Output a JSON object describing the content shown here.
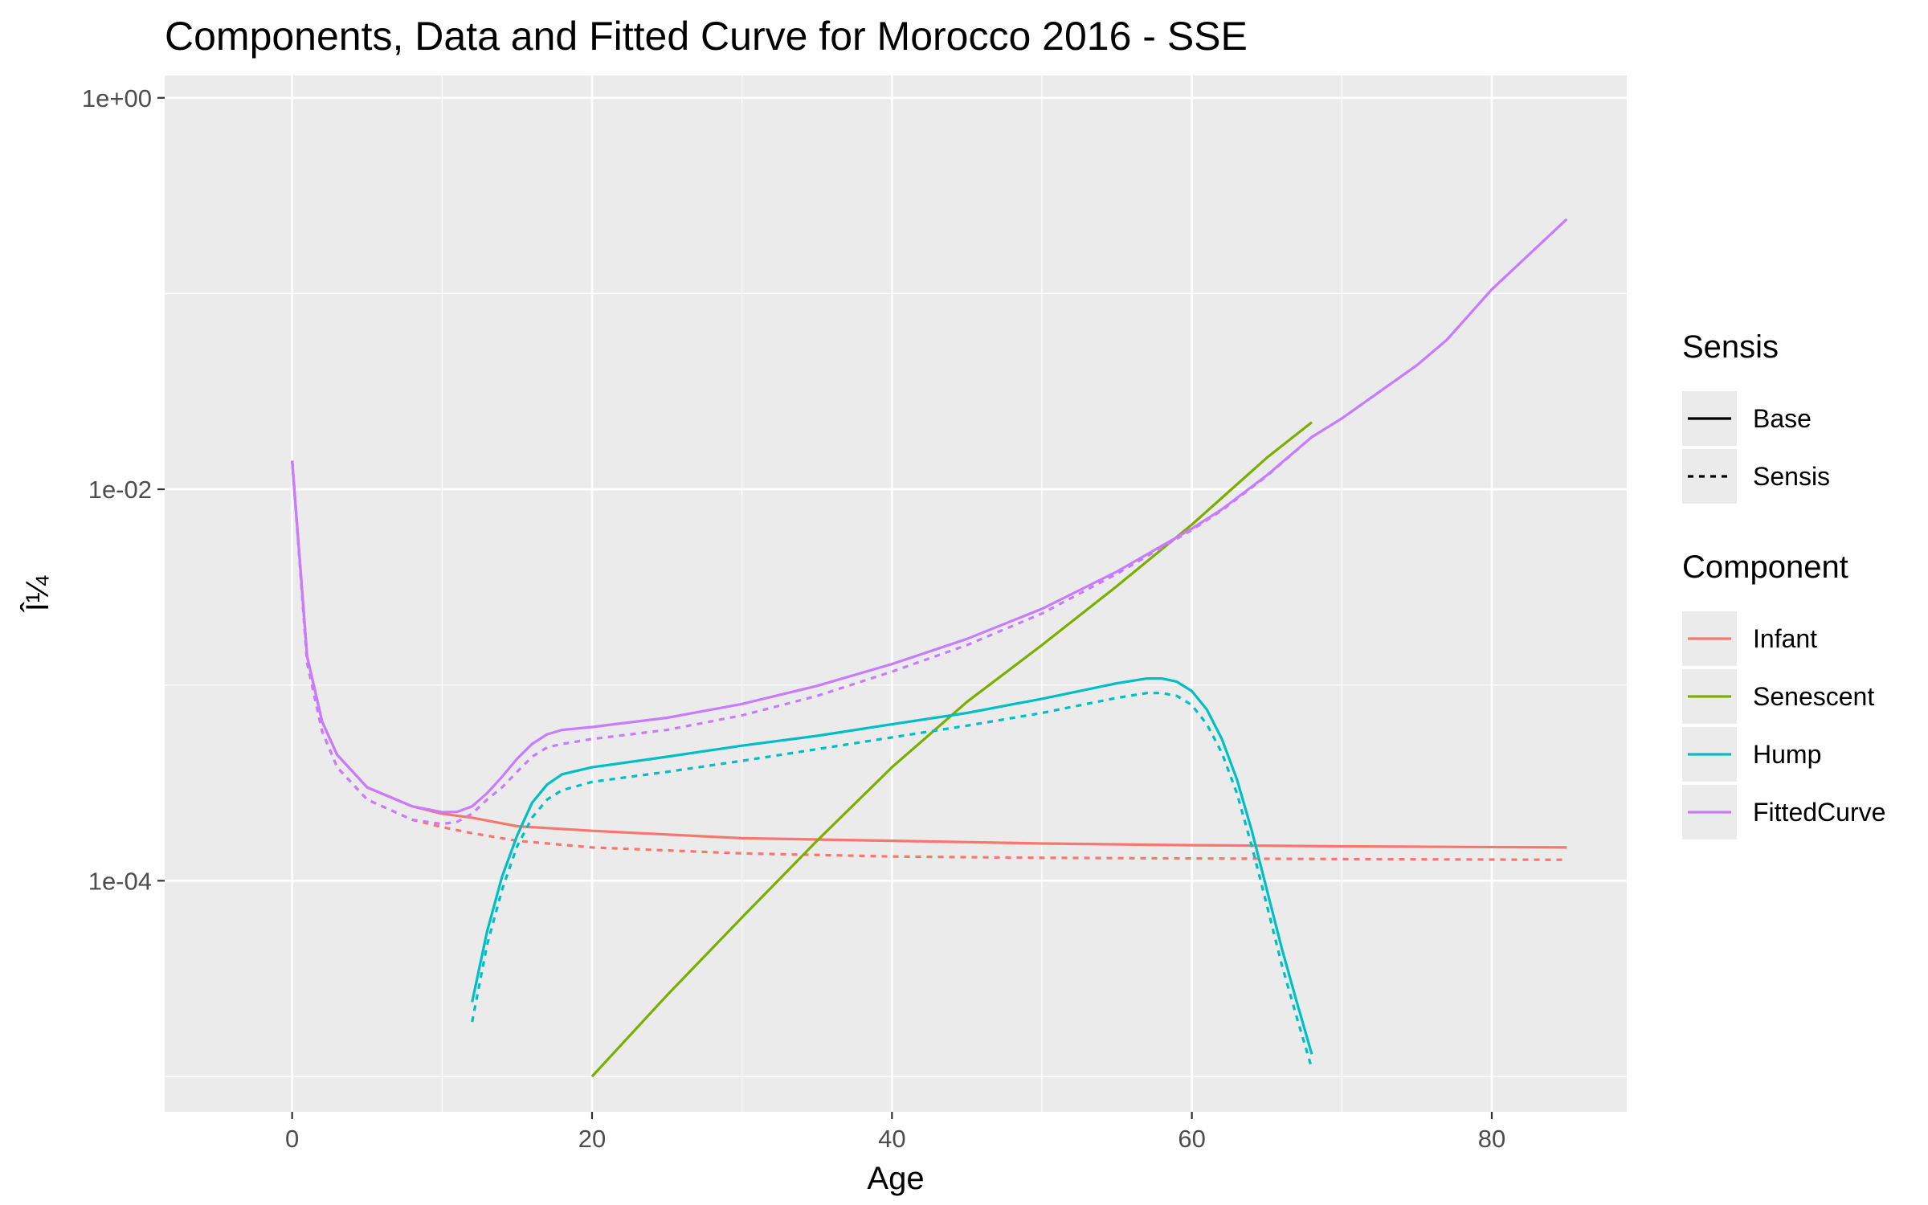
{
  "chart_data": {
    "type": "line",
    "title": "Components, Data and Fitted Curve for Morocco 2016 - SSE",
    "xlabel": "Age",
    "ylabel": "Î¼",
    "xlim": [
      -8.5,
      89
    ],
    "ylim": [
      6.6e-06,
      1.3
    ],
    "y_scale": "log",
    "x_ticks": [
      0,
      20,
      40,
      60,
      80
    ],
    "x_tick_labels": [
      "0",
      "20",
      "40",
      "60",
      "80"
    ],
    "y_ticks": [
      0.0001,
      0.01,
      1
    ],
    "y_tick_labels": [
      "1e-04",
      "1e-02",
      "1e+00"
    ],
    "grid": true,
    "legends": [
      {
        "title": "Sensis",
        "entries": [
          {
            "label": "Base",
            "linetype": "solid"
          },
          {
            "label": "Sensis",
            "linetype": "dashed"
          }
        ]
      },
      {
        "title": "Component",
        "entries": [
          {
            "label": "Infant",
            "color": "#F8766D"
          },
          {
            "label": "Senescent",
            "color": "#7CAE00"
          },
          {
            "label": "Hump",
            "color": "#00BFC4"
          },
          {
            "label": "FittedCurve",
            "color": "#C77CFF"
          }
        ]
      }
    ],
    "legend_position": "right",
    "series": [
      {
        "component": "Infant",
        "sensis": "Base",
        "color": "#F8766D",
        "linetype": "solid",
        "x": [
          0,
          1,
          2,
          3,
          5,
          8,
          10,
          12,
          15,
          20,
          30,
          40,
          50,
          60,
          70,
          85
        ],
        "y": [
          0.014,
          0.0014,
          0.00065,
          0.00044,
          0.0003,
          0.00024,
          0.00022,
          0.00021,
          0.00019,
          0.00018,
          0.000165,
          0.00016,
          0.000155,
          0.000152,
          0.00015,
          0.000148
        ]
      },
      {
        "component": "Infant",
        "sensis": "Sensis",
        "color": "#F8766D",
        "linetype": "dashed",
        "x": [
          0,
          1,
          2,
          3,
          5,
          8,
          10,
          12,
          15,
          20,
          30,
          40,
          50,
          60,
          70,
          85
        ],
        "y": [
          0.014,
          0.0013,
          0.00058,
          0.00038,
          0.00026,
          0.000205,
          0.000188,
          0.000175,
          0.00016,
          0.000148,
          0.000138,
          0.000133,
          0.000131,
          0.00013,
          0.000129,
          0.000128
        ]
      },
      {
        "component": "Senescent",
        "sensis": "Base",
        "color": "#7CAE00",
        "linetype": "solid",
        "x": [
          20,
          25,
          30,
          35,
          40,
          45,
          50,
          55,
          60,
          65,
          68
        ],
        "y": [
          1e-05,
          2.6e-05,
          6.5e-05,
          0.00016,
          0.00038,
          0.00082,
          0.0016,
          0.0032,
          0.0066,
          0.0145,
          0.022
        ]
      },
      {
        "component": "Hump",
        "sensis": "Base",
        "color": "#00BFC4",
        "linetype": "solid",
        "x": [
          12,
          13,
          14,
          15,
          16,
          17,
          18,
          20,
          25,
          30,
          35,
          40,
          45,
          50,
          55,
          57,
          58,
          59,
          60,
          61,
          62,
          63,
          64,
          65,
          66,
          67,
          68
        ],
        "y": [
          2.4e-05,
          5.5e-05,
          0.000105,
          0.00017,
          0.00025,
          0.00031,
          0.00035,
          0.00038,
          0.00043,
          0.00049,
          0.00055,
          0.00063,
          0.00072,
          0.00085,
          0.00102,
          0.00108,
          0.00108,
          0.00104,
          0.00093,
          0.00075,
          0.00053,
          0.00033,
          0.00018,
          9e-05,
          4.5e-05,
          2.4e-05,
          1.3e-05
        ]
      },
      {
        "component": "Hump",
        "sensis": "Sensis",
        "color": "#00BFC4",
        "linetype": "dashed",
        "x": [
          12,
          13,
          14,
          15,
          16,
          17,
          18,
          20,
          25,
          30,
          35,
          40,
          45,
          50,
          55,
          57,
          58,
          59,
          60,
          61,
          62,
          63,
          64,
          65,
          66,
          67,
          68
        ],
        "y": [
          1.9e-05,
          4.7e-05,
          9e-05,
          0.00015,
          0.00021,
          0.00026,
          0.00029,
          0.00032,
          0.00036,
          0.00041,
          0.00047,
          0.00054,
          0.00062,
          0.00072,
          0.00086,
          0.00091,
          0.00091,
          0.00088,
          0.00079,
          0.00063,
          0.00045,
          0.00028,
          0.00015,
          7.5e-05,
          3.7e-05,
          2e-05,
          1.1e-05
        ]
      },
      {
        "component": "FittedCurve",
        "sensis": "Base",
        "color": "#C77CFF",
        "linetype": "solid",
        "x": [
          0,
          1,
          2,
          3,
          5,
          8,
          10,
          11,
          12,
          13,
          14,
          15,
          16,
          17,
          18,
          20,
          25,
          30,
          35,
          40,
          45,
          50,
          55,
          60,
          62,
          65,
          68,
          70,
          75,
          77,
          80,
          85
        ],
        "y": [
          0.014,
          0.0014,
          0.00065,
          0.00044,
          0.0003,
          0.00024,
          0.000224,
          0.000225,
          0.00024,
          0.00028,
          0.00034,
          0.00042,
          0.0005,
          0.00056,
          0.00059,
          0.00061,
          0.00068,
          0.0008,
          0.00099,
          0.00128,
          0.00172,
          0.00245,
          0.0038,
          0.0063,
          0.0079,
          0.0118,
          0.0185,
          0.023,
          0.043,
          0.058,
          0.105,
          0.24
        ]
      },
      {
        "component": "FittedCurve",
        "sensis": "Sensis",
        "color": "#C77CFF",
        "linetype": "dashed",
        "x": [
          0,
          1,
          2,
          3,
          5,
          8,
          10,
          11,
          12,
          13,
          14,
          15,
          16,
          17,
          18,
          20,
          25,
          30,
          35,
          40,
          45,
          50,
          55,
          60,
          62,
          65,
          68,
          70,
          75,
          77,
          80,
          85
        ],
        "y": [
          0.014,
          0.0013,
          0.00058,
          0.00038,
          0.00026,
          0.000205,
          0.000195,
          0.0002,
          0.00022,
          0.00026,
          0.0003,
          0.00036,
          0.00043,
          0.00048,
          0.0005,
          0.00053,
          0.00059,
          0.0007,
          0.00088,
          0.00117,
          0.0016,
          0.00232,
          0.0037,
          0.0062,
          0.0078,
          0.0117,
          0.0185,
          0.023,
          0.043,
          0.058,
          0.105,
          0.24
        ]
      }
    ]
  }
}
